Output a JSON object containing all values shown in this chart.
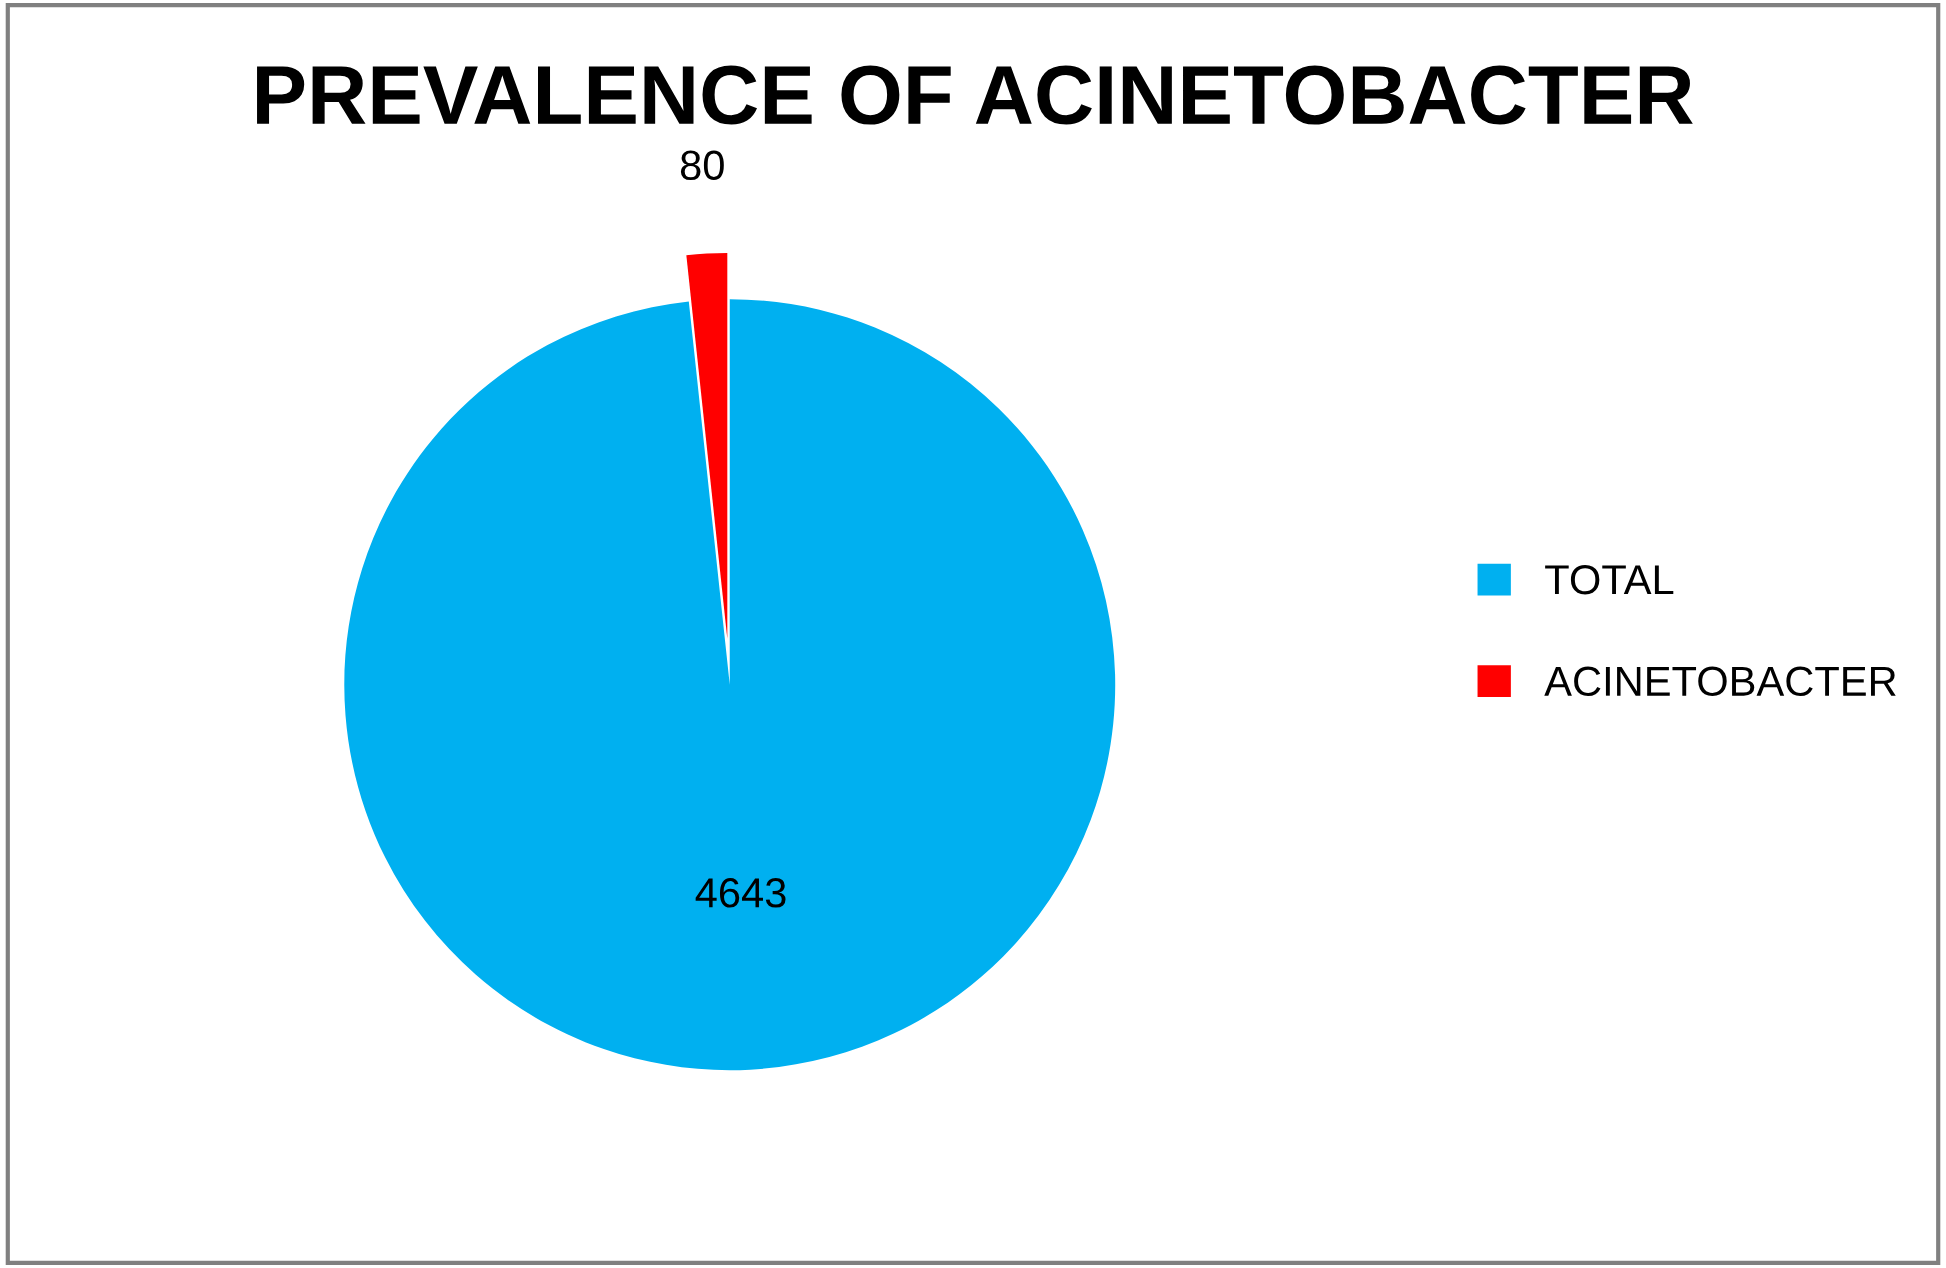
{
  "chart_data": {
    "type": "pie",
    "title": "PREVALENCE OF ACINETOBACTER",
    "categories": [
      "TOTAL",
      "ACINETOBACTER"
    ],
    "values": [
      4643,
      80
    ],
    "colors": [
      "#00b0f0",
      "#ff0000"
    ],
    "data_labels": true,
    "legend": "right"
  }
}
